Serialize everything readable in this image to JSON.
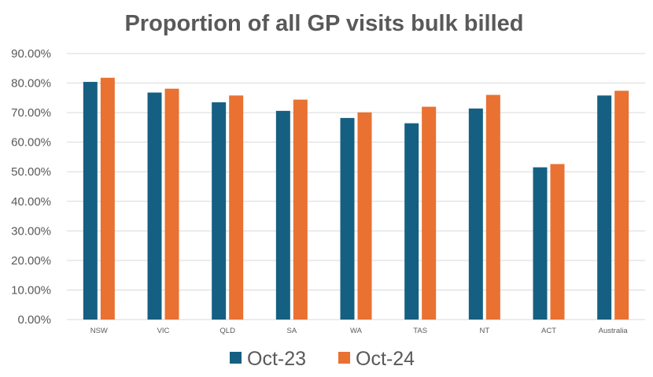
{
  "chart_data": {
    "type": "bar",
    "title": "Proportion of all GP visits bulk billed",
    "xlabel": "",
    "ylabel": "",
    "categories": [
      "NSW",
      "VIC",
      "QLD",
      "SA",
      "WA",
      "TAS",
      "NT",
      "ACT",
      "Australia"
    ],
    "series": [
      {
        "name": "Oct-23",
        "color": "#156082",
        "values": [
          80.4,
          76.8,
          73.5,
          70.6,
          68.2,
          66.4,
          71.4,
          51.5,
          75.8
        ]
      },
      {
        "name": "Oct-24",
        "color": "#E97132",
        "values": [
          81.8,
          78.1,
          75.8,
          74.4,
          70.1,
          72.0,
          76.0,
          52.6,
          77.4
        ]
      }
    ],
    "ylim": [
      0,
      90
    ],
    "yticks": [
      "0.00%",
      "10.00%",
      "20.00%",
      "30.00%",
      "40.00%",
      "50.00%",
      "60.00%",
      "70.00%",
      "80.00%",
      "90.00%"
    ],
    "grid": true,
    "legend_position": "bottom"
  }
}
